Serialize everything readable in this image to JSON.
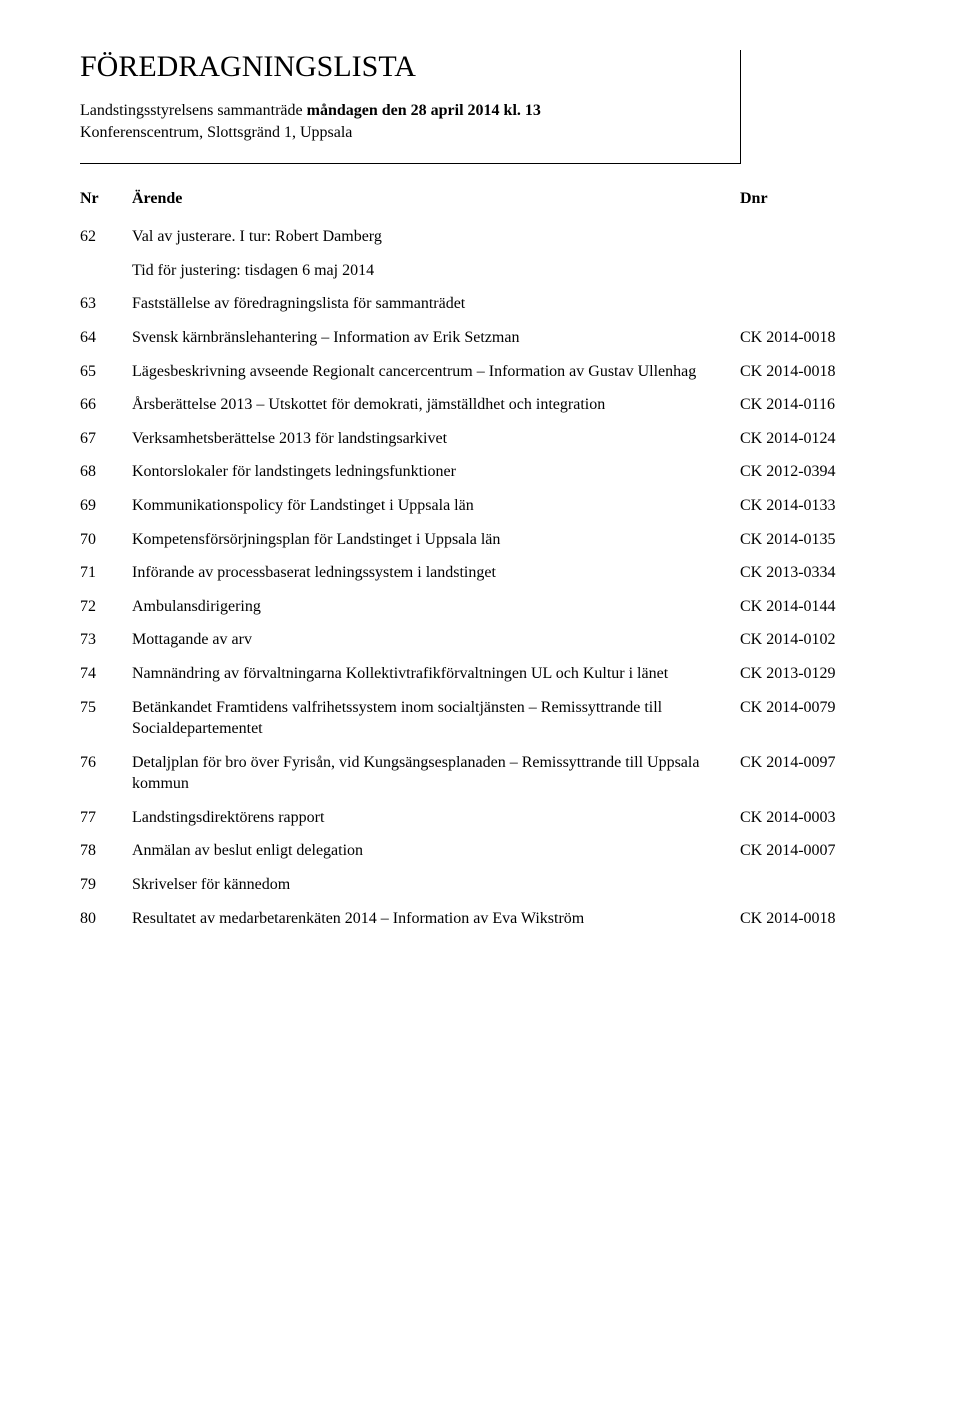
{
  "header": {
    "title": "FÖREDRAGNINGSLISTA",
    "line1_pre": "Landstingsstyrelsens sammanträde ",
    "line1_bold": "måndagen den 28 april 2014 kl. 13",
    "line2": "Konferenscentrum, Slottsgränd 1, Uppsala"
  },
  "columns": {
    "nr": "Nr",
    "arende": "Ärende",
    "dnr": "Dnr"
  },
  "items": [
    {
      "nr": "62",
      "text": "Val av justerare. I tur: Robert Damberg",
      "dnr": "",
      "sub": [
        "Tid för justering: tisdagen 6 maj 2014"
      ]
    },
    {
      "nr": "63",
      "text": "Fastställelse av föredragningslista för sammanträdet",
      "dnr": ""
    },
    {
      "nr": "64",
      "text": "Svensk kärnbränslehantering – Information av Erik Setzman",
      "dnr": "CK 2014-0018"
    },
    {
      "nr": "65",
      "text": "Lägesbeskrivning avseende Regionalt cancercentrum – Information av Gustav Ullenhag",
      "dnr": "CK 2014-0018"
    },
    {
      "nr": "66",
      "text": "Årsberättelse 2013 – Utskottet för demokrati, jämställdhet och integration",
      "dnr": "CK 2014-0116"
    },
    {
      "nr": "67",
      "text": "Verksamhetsberättelse 2013 för landstingsarkivet",
      "dnr": "CK 2014-0124"
    },
    {
      "nr": "68",
      "text": "Kontorslokaler för landstingets ledningsfunktioner",
      "dnr": "CK 2012-0394"
    },
    {
      "nr": "69",
      "text": "Kommunikationspolicy för Landstinget i Uppsala län",
      "dnr": "CK 2014-0133"
    },
    {
      "nr": "70",
      "text": "Kompetensförsörjningsplan för Landstinget i Uppsala län",
      "dnr": "CK 2014-0135"
    },
    {
      "nr": "71",
      "text": "Införande av processbaserat ledningssystem i landstinget",
      "dnr": "CK 2013-0334"
    },
    {
      "nr": "72",
      "text": "Ambulansdirigering",
      "dnr": "CK 2014-0144"
    },
    {
      "nr": "73",
      "text": "Mottagande av arv",
      "dnr": "CK 2014-0102"
    },
    {
      "nr": "74",
      "text": "Namnändring av förvaltningarna Kollektivtrafikförvaltningen UL och Kultur i länet",
      "dnr": "CK 2013-0129"
    },
    {
      "nr": "75",
      "text": "Betänkandet Framtidens valfrihetssystem inom socialtjänsten – Remissyttrande till Socialdepartementet",
      "dnr": "CK 2014-0079"
    },
    {
      "nr": "76",
      "text": "Detaljplan för bro över Fyrisån, vid Kungsängsesplanaden – Remissyttrande till Uppsala kommun",
      "dnr": "CK 2014-0097"
    },
    {
      "nr": "77",
      "text": "Landstingsdirektörens rapport",
      "dnr": "CK 2014-0003"
    },
    {
      "nr": "78",
      "text": "Anmälan av beslut enligt delegation",
      "dnr": "CK 2014-0007"
    },
    {
      "nr": "79",
      "text": "Skrivelser för kännedom",
      "dnr": ""
    },
    {
      "nr": "80",
      "text": "Resultatet av medarbetarenkäten 2014 – Information av Eva Wikström",
      "dnr": "CK 2014-0018"
    }
  ]
}
